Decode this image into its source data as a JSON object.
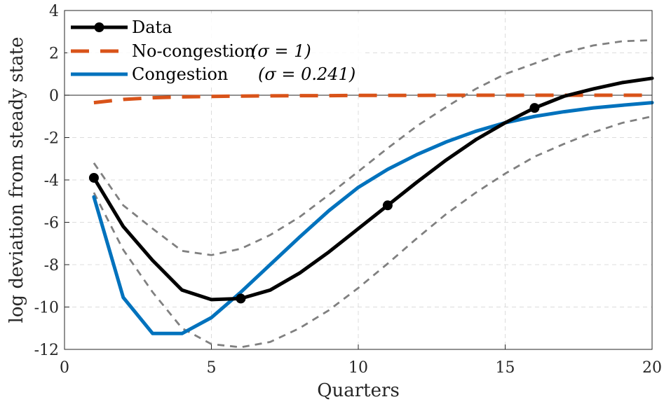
{
  "chart_data": {
    "type": "line",
    "xlabel": "Quarters",
    "ylabel": "log deviation from steady state",
    "xlim": [
      0,
      20
    ],
    "ylim": [
      -12,
      4
    ],
    "xticks": [
      0,
      5,
      10,
      15,
      20
    ],
    "yticks": [
      -12,
      -10,
      -8,
      -6,
      -4,
      -2,
      0,
      2,
      4
    ],
    "xtick_labels": [
      "0",
      "5",
      "10",
      "15",
      "20"
    ],
    "ytick_labels": [
      "-12",
      "-10",
      "-8",
      "-6",
      "-4",
      "-2",
      "0",
      "2",
      "4"
    ],
    "grid": true,
    "zero_line": true,
    "legend_position": "top-left",
    "series": [
      {
        "name": "Data",
        "color": "#000000",
        "style": "solid",
        "marker_x": [
          1,
          6,
          11,
          16
        ],
        "x": [
          1,
          2,
          3,
          4,
          5,
          6,
          7,
          8,
          9,
          10,
          11,
          12,
          13,
          14,
          15,
          16,
          17,
          18,
          19,
          20
        ],
        "values": [
          -3.9,
          -6.2,
          -7.8,
          -9.2,
          -9.65,
          -9.6,
          -9.2,
          -8.4,
          -7.4,
          -6.3,
          -5.2,
          -4.1,
          -3.05,
          -2.1,
          -1.3,
          -0.6,
          -0.05,
          0.3,
          0.6,
          0.8
        ]
      },
      {
        "name": "No-congestion",
        "legend_label": "No-congestion",
        "legend_math": "(σ = 1)",
        "color": "#D95319",
        "style": "dashed",
        "x": [
          1,
          2,
          3,
          4,
          5,
          6,
          7,
          8,
          9,
          10,
          11,
          12,
          13,
          14,
          15,
          16,
          17,
          18,
          19,
          20
        ],
        "values": [
          -0.35,
          -0.2,
          -0.12,
          -0.08,
          -0.06,
          -0.04,
          -0.03,
          -0.02,
          -0.02,
          -0.01,
          -0.01,
          -0.01,
          0,
          0,
          0,
          0,
          0,
          0,
          0,
          0
        ]
      },
      {
        "name": "Congestion",
        "legend_label": "Congestion",
        "legend_math": "(σ = 0.241)",
        "color": "#0072BD",
        "style": "solid",
        "x": [
          1,
          2,
          3,
          4,
          5,
          6,
          7,
          8,
          9,
          10,
          11,
          12,
          13,
          14,
          15,
          16,
          17,
          18,
          19,
          20
        ],
        "values": [
          -4.8,
          -9.55,
          -11.25,
          -11.25,
          -10.5,
          -9.3,
          -8.0,
          -6.7,
          -5.45,
          -4.35,
          -3.5,
          -2.8,
          -2.2,
          -1.7,
          -1.3,
          -1.0,
          -0.78,
          -0.6,
          -0.47,
          -0.35
        ]
      }
    ],
    "bands": [
      {
        "color": "#808080",
        "style": "dashed",
        "x": [
          1,
          2,
          3,
          4,
          5,
          6,
          7,
          8,
          9,
          10,
          11,
          12,
          13,
          14,
          15,
          16,
          17,
          18,
          19,
          20
        ],
        "values": [
          -3.2,
          -5.2,
          -6.3,
          -7.35,
          -7.55,
          -7.25,
          -6.6,
          -5.75,
          -4.7,
          -3.6,
          -2.5,
          -1.45,
          -0.55,
          0.3,
          1.0,
          1.5,
          2.0,
          2.35,
          2.55,
          2.6
        ]
      },
      {
        "color": "#808080",
        "style": "dashed",
        "x": [
          1,
          2,
          3,
          4,
          5,
          6,
          7,
          8,
          9,
          10,
          11,
          12,
          13,
          14,
          15,
          16,
          17,
          18,
          19,
          20
        ],
        "values": [
          -4.6,
          -7.3,
          -9.3,
          -11.0,
          -11.75,
          -11.9,
          -11.65,
          -11.0,
          -10.15,
          -9.1,
          -7.95,
          -6.75,
          -5.6,
          -4.6,
          -3.7,
          -2.9,
          -2.3,
          -1.75,
          -1.3,
          -1.0
        ]
      }
    ]
  }
}
